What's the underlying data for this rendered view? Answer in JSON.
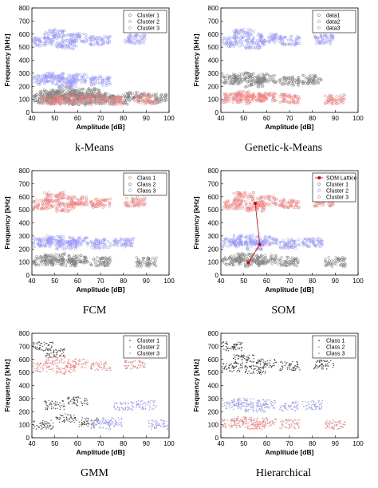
{
  "chart_data": [
    {
      "type": "scatter",
      "caption": "k-Means",
      "xlabel": "Amplitude [dB]",
      "ylabel": "Frequency [kHz]",
      "xlim": [
        40,
        100
      ],
      "ylim": [
        0,
        800
      ],
      "xticks": [
        40,
        50,
        60,
        70,
        80,
        90,
        100
      ],
      "yticks": [
        0,
        100,
        200,
        300,
        400,
        500,
        600,
        700,
        800
      ],
      "legend_position": "top-right",
      "series": [
        {
          "name": "Cluster 1",
          "color": "#7f7f7f",
          "marker": "circle",
          "points": [
            [
              45,
              105
            ],
            [
              48,
              140
            ],
            [
              50,
              120
            ],
            [
              52,
              95
            ],
            [
              55,
              160
            ],
            [
              58,
              110
            ],
            [
              60,
              130
            ],
            [
              62,
              90
            ],
            [
              65,
              150
            ],
            [
              68,
              115
            ],
            [
              72,
              100
            ],
            [
              78,
              95
            ],
            [
              85,
              120
            ],
            [
              95,
              110
            ]
          ]
        },
        {
          "name": "Cluster 2",
          "color": "#f08080",
          "marker": "circle",
          "points": [
            [
              48,
              95
            ],
            [
              55,
              100
            ],
            [
              65,
              105
            ],
            [
              75,
              95
            ],
            [
              90,
              100
            ]
          ]
        },
        {
          "name": "Cluster 3",
          "color": "#9999ff",
          "marker": "circle",
          "points": [
            [
              45,
              250
            ],
            [
              50,
              270
            ],
            [
              55,
              230
            ],
            [
              60,
              260
            ],
            [
              70,
              240
            ],
            [
              45,
              540
            ],
            [
              50,
              600
            ],
            [
              55,
              520
            ],
            [
              60,
              570
            ],
            [
              70,
              550
            ],
            [
              85,
              560
            ]
          ]
        }
      ]
    },
    {
      "type": "scatter",
      "caption": "Genetic-k-Means",
      "xlabel": "Amplitude [dB]",
      "ylabel": "Frequency [kHz]",
      "xlim": [
        40,
        100
      ],
      "ylim": [
        0,
        800
      ],
      "xticks": [
        40,
        50,
        60,
        70,
        80,
        90,
        100
      ],
      "yticks": [
        0,
        100,
        200,
        300,
        400,
        500,
        600,
        700,
        800
      ],
      "legend_position": "top-right",
      "series": [
        {
          "name": "data1",
          "color": "#7f7f7f",
          "marker": "circle",
          "points": [
            [
              45,
              250
            ],
            [
              50,
              270
            ],
            [
              55,
              230
            ],
            [
              60,
              260
            ],
            [
              70,
              240
            ],
            [
              80,
              250
            ]
          ]
        },
        {
          "name": "data2",
          "color": "#9999ff",
          "marker": "circle",
          "points": [
            [
              45,
              540
            ],
            [
              50,
              600
            ],
            [
              55,
              520
            ],
            [
              60,
              570
            ],
            [
              70,
              550
            ],
            [
              85,
              560
            ]
          ]
        },
        {
          "name": "data3",
          "color": "#f08080",
          "marker": "circle",
          "points": [
            [
              45,
              110
            ],
            [
              50,
              130
            ],
            [
              55,
              100
            ],
            [
              60,
              120
            ],
            [
              70,
              105
            ],
            [
              90,
              100
            ]
          ]
        }
      ]
    },
    {
      "type": "scatter",
      "caption": "FCM",
      "xlabel": "Amplitude [dB]",
      "ylabel": "Frequency [kHz]",
      "xlim": [
        40,
        100
      ],
      "ylim": [
        0,
        800
      ],
      "xticks": [
        40,
        50,
        60,
        70,
        80,
        90,
        100
      ],
      "yticks": [
        0,
        100,
        200,
        300,
        400,
        500,
        600,
        700,
        800
      ],
      "legend_position": "top-right",
      "series": [
        {
          "name": "Class 1",
          "color": "#f08080",
          "marker": "circle",
          "points": [
            [
              45,
              540
            ],
            [
              50,
              600
            ],
            [
              55,
              520
            ],
            [
              60,
              570
            ],
            [
              70,
              550
            ],
            [
              85,
              560
            ]
          ]
        },
        {
          "name": "Class 2",
          "color": "#7f7f7f",
          "marker": "circle",
          "points": [
            [
              45,
              110
            ],
            [
              50,
              130
            ],
            [
              55,
              100
            ],
            [
              60,
              120
            ],
            [
              70,
              105
            ],
            [
              90,
              100
            ]
          ]
        },
        {
          "name": "Class 3",
          "color": "#9999ff",
          "marker": "circle",
          "points": [
            [
              45,
              250
            ],
            [
              50,
              270
            ],
            [
              55,
              230
            ],
            [
              60,
              260
            ],
            [
              70,
              240
            ],
            [
              80,
              250
            ]
          ]
        }
      ]
    },
    {
      "type": "scatter",
      "caption": "SOM",
      "xlabel": "Amplitude [dB]",
      "ylabel": "Frequency [kHz]",
      "xlim": [
        40,
        100
      ],
      "ylim": [
        0,
        800
      ],
      "xticks": [
        40,
        50,
        60,
        70,
        80,
        90,
        100
      ],
      "yticks": [
        0,
        100,
        200,
        300,
        400,
        500,
        600,
        700,
        800
      ],
      "legend_position": "top-right",
      "lattice": {
        "name": "SOM Lattice",
        "color": "#cc0000",
        "points": [
          [
            55,
            550
          ],
          [
            57,
            235
          ],
          [
            52,
            95
          ]
        ]
      },
      "series": [
        {
          "name": "Cluster 1",
          "color": "#7f7f7f",
          "marker": "circle",
          "points": [
            [
              45,
              110
            ],
            [
              50,
              130
            ],
            [
              55,
              100
            ],
            [
              60,
              120
            ],
            [
              70,
              105
            ],
            [
              90,
              100
            ]
          ]
        },
        {
          "name": "Cluster 2",
          "color": "#9999ff",
          "marker": "circle",
          "points": [
            [
              45,
              250
            ],
            [
              50,
              270
            ],
            [
              55,
              230
            ],
            [
              60,
              260
            ],
            [
              70,
              240
            ],
            [
              80,
              250
            ]
          ]
        },
        {
          "name": "Cluster 3",
          "color": "#f08080",
          "marker": "circle",
          "points": [
            [
              45,
              540
            ],
            [
              50,
              600
            ],
            [
              55,
              520
            ],
            [
              60,
              570
            ],
            [
              70,
              550
            ],
            [
              85,
              560
            ]
          ]
        }
      ]
    },
    {
      "type": "scatter",
      "caption": "GMM",
      "xlabel": "Amplitude [dB]",
      "ylabel": "Frequency [kHz]",
      "xlim": [
        40,
        100
      ],
      "ylim": [
        0,
        800
      ],
      "xticks": [
        40,
        50,
        60,
        70,
        80,
        90,
        100
      ],
      "yticks": [
        0,
        100,
        200,
        300,
        400,
        500,
        600,
        700,
        800
      ],
      "legend_position": "top-right",
      "series": [
        {
          "name": "Cluster 1",
          "color": "#555555",
          "marker": "dot",
          "points": [
            [
              45,
              100
            ],
            [
              50,
              250
            ],
            [
              55,
              150
            ],
            [
              60,
              280
            ],
            [
              65,
              120
            ],
            [
              45,
              700
            ],
            [
              50,
              650
            ]
          ]
        },
        {
          "name": "Cluster 2",
          "color": "#f08080",
          "marker": "dot",
          "points": [
            [
              45,
              540
            ],
            [
              50,
              600
            ],
            [
              55,
              520
            ],
            [
              60,
              570
            ],
            [
              70,
              550
            ],
            [
              85,
              560
            ]
          ]
        },
        {
          "name": "Cluster 3",
          "color": "#9999ff",
          "marker": "dot",
          "points": [
            [
              70,
              100
            ],
            [
              75,
              120
            ],
            [
              80,
              240
            ],
            [
              90,
              250
            ],
            [
              95,
              100
            ]
          ]
        }
      ]
    },
    {
      "type": "scatter",
      "caption": "Hierarchical",
      "xlabel": "Amplitude [dB]",
      "ylabel": "Frequency [kHz]",
      "xlim": [
        40,
        100
      ],
      "ylim": [
        0,
        800
      ],
      "xticks": [
        40,
        50,
        60,
        70,
        80,
        90,
        100
      ],
      "yticks": [
        0,
        100,
        200,
        300,
        400,
        500,
        600,
        700,
        800
      ],
      "legend_position": "top-right",
      "series": [
        {
          "name": "Class 1",
          "color": "#444444",
          "marker": "dot",
          "points": [
            [
              45,
              540
            ],
            [
              50,
              600
            ],
            [
              55,
              520
            ],
            [
              60,
              570
            ],
            [
              70,
              550
            ],
            [
              45,
              700
            ],
            [
              85,
              560
            ]
          ]
        },
        {
          "name": "Class 2",
          "color": "#9999ff",
          "marker": "dot",
          "points": [
            [
              45,
              250
            ],
            [
              50,
              270
            ],
            [
              55,
              230
            ],
            [
              60,
              260
            ],
            [
              70,
              240
            ],
            [
              80,
              250
            ]
          ]
        },
        {
          "name": "Class 3",
          "color": "#f08080",
          "marker": "dot",
          "points": [
            [
              45,
              110
            ],
            [
              50,
              130
            ],
            [
              55,
              100
            ],
            [
              60,
              120
            ],
            [
              70,
              105
            ],
            [
              90,
              100
            ]
          ]
        }
      ]
    }
  ]
}
